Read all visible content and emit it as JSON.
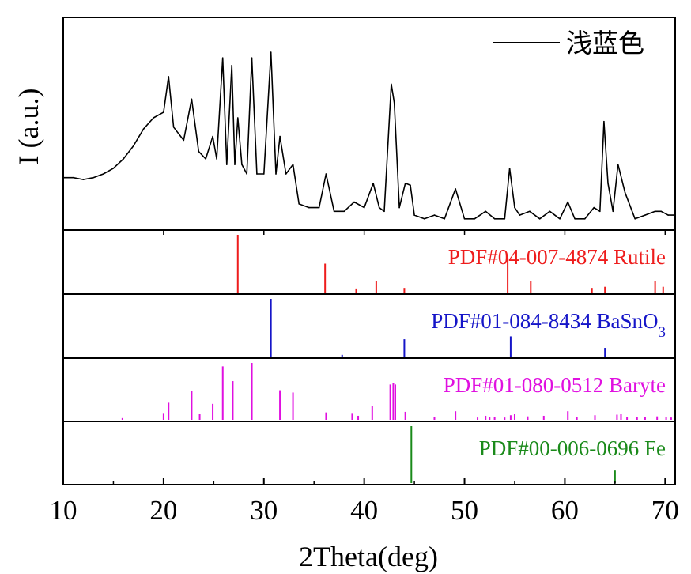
{
  "chart_data": {
    "type": "line",
    "xlabel": "2Theta(deg)",
    "ylabel": "I (a.u.)",
    "xlim": [
      10,
      71
    ],
    "xticks": [
      10,
      20,
      30,
      40,
      50,
      60,
      70
    ],
    "legend": {
      "label": "浅蓝色",
      "position": "top-right"
    },
    "series": [
      {
        "name": "浅蓝色",
        "color": "#000000",
        "x": [
          10,
          11,
          12,
          13,
          14,
          15,
          16,
          17,
          18,
          19,
          20,
          20.5,
          21,
          22,
          22.8,
          23.5,
          24.2,
          24.9,
          25.3,
          25.9,
          26.3,
          26.8,
          27.1,
          27.4,
          27.8,
          28.3,
          28.8,
          29.3,
          30.0,
          30.7,
          31.2,
          31.6,
          32.2,
          32.9,
          33.5,
          34.5,
          35.5,
          36.2,
          37.0,
          38.0,
          39.0,
          40.0,
          40.9,
          41.5,
          42.0,
          42.7,
          43.0,
          43.5,
          44.1,
          44.6,
          45.0,
          46.0,
          47.0,
          48.0,
          49.1,
          50.0,
          51.0,
          52.1,
          53.0,
          54.0,
          54.5,
          55.0,
          55.5,
          56.5,
          57.5,
          58.5,
          59.5,
          60.3,
          61.0,
          62.0,
          62.9,
          63.5,
          63.9,
          64.3,
          64.8,
          65.3,
          66.0,
          67.0,
          68.0,
          69.0,
          69.6,
          70.3,
          71
        ],
        "y": [
          0.28,
          0.28,
          0.27,
          0.28,
          0.3,
          0.33,
          0.38,
          0.45,
          0.54,
          0.6,
          0.63,
          0.82,
          0.55,
          0.48,
          0.7,
          0.42,
          0.38,
          0.5,
          0.38,
          0.92,
          0.35,
          0.88,
          0.35,
          0.6,
          0.35,
          0.3,
          0.92,
          0.3,
          0.3,
          0.95,
          0.3,
          0.5,
          0.3,
          0.35,
          0.14,
          0.12,
          0.12,
          0.3,
          0.1,
          0.1,
          0.15,
          0.12,
          0.25,
          0.12,
          0.1,
          0.78,
          0.68,
          0.12,
          0.25,
          0.24,
          0.08,
          0.06,
          0.08,
          0.06,
          0.22,
          0.06,
          0.06,
          0.1,
          0.06,
          0.06,
          0.33,
          0.12,
          0.08,
          0.1,
          0.06,
          0.1,
          0.06,
          0.15,
          0.06,
          0.06,
          0.12,
          0.1,
          0.58,
          0.25,
          0.1,
          0.35,
          0.2,
          0.06,
          0.08,
          0.1,
          0.1,
          0.08,
          0.08
        ]
      }
    ],
    "references": [
      {
        "label": "PDF#04-007-4874 Rutile",
        "color": "#ee1c1c",
        "peaks": [
          [
            27.4,
            1.0
          ],
          [
            36.1,
            0.5
          ],
          [
            39.2,
            0.07
          ],
          [
            41.2,
            0.2
          ],
          [
            44.0,
            0.08
          ],
          [
            54.3,
            0.6
          ],
          [
            56.6,
            0.2
          ],
          [
            62.7,
            0.08
          ],
          [
            64.0,
            0.1
          ],
          [
            69.0,
            0.2
          ],
          [
            69.8,
            0.1
          ]
        ]
      },
      {
        "label": "PDF#01-084-8434 BaSnO",
        "sub": "3",
        "color": "#1515c8",
        "peaks": [
          [
            30.7,
            1.0
          ],
          [
            37.8,
            0.03
          ],
          [
            44.0,
            0.3
          ],
          [
            54.6,
            0.35
          ],
          [
            64.0,
            0.15
          ]
        ]
      },
      {
        "label": "PDF#01-080-0512 Baryte",
        "color": "#e010e0",
        "peaks": [
          [
            15.9,
            0.03
          ],
          [
            20.0,
            0.12
          ],
          [
            20.5,
            0.3
          ],
          [
            22.8,
            0.5
          ],
          [
            23.6,
            0.1
          ],
          [
            24.9,
            0.28
          ],
          [
            25.9,
            0.94
          ],
          [
            26.9,
            0.68
          ],
          [
            28.8,
            1.0
          ],
          [
            31.6,
            0.52
          ],
          [
            32.9,
            0.48
          ],
          [
            36.2,
            0.13
          ],
          [
            38.8,
            0.12
          ],
          [
            39.4,
            0.07
          ],
          [
            40.8,
            0.25
          ],
          [
            42.6,
            0.62
          ],
          [
            42.9,
            0.65
          ],
          [
            43.1,
            0.62
          ],
          [
            44.1,
            0.14
          ],
          [
            47.0,
            0.05
          ],
          [
            49.1,
            0.15
          ],
          [
            51.3,
            0.04
          ],
          [
            52.1,
            0.07
          ],
          [
            52.5,
            0.05
          ],
          [
            53.0,
            0.05
          ],
          [
            54.0,
            0.04
          ],
          [
            54.6,
            0.08
          ],
          [
            55.0,
            0.1
          ],
          [
            56.3,
            0.06
          ],
          [
            57.9,
            0.07
          ],
          [
            60.3,
            0.15
          ],
          [
            61.2,
            0.05
          ],
          [
            63.0,
            0.08
          ],
          [
            65.2,
            0.09
          ],
          [
            65.6,
            0.1
          ],
          [
            66.2,
            0.05
          ],
          [
            67.2,
            0.05
          ],
          [
            68.0,
            0.05
          ],
          [
            69.2,
            0.06
          ],
          [
            70.1,
            0.05
          ],
          [
            70.6,
            0.04
          ]
        ]
      },
      {
        "label": "PDF#00-006-0696 Fe",
        "color": "#1a8a1a",
        "peaks": [
          [
            44.7,
            1.0
          ],
          [
            65.0,
            0.22
          ]
        ]
      }
    ]
  }
}
